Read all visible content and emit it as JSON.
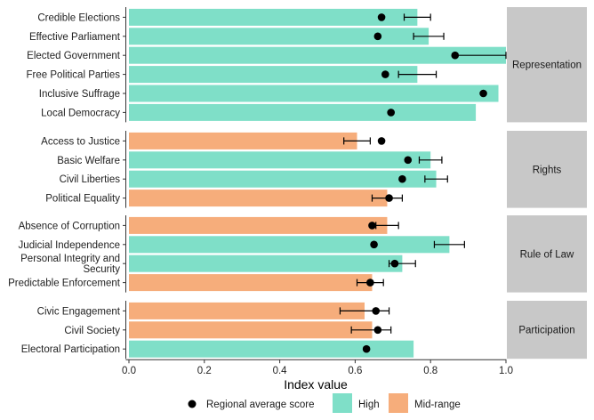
{
  "chart_data": {
    "type": "bar",
    "orientation": "horizontal",
    "xlabel": "Index value",
    "xlim": [
      0,
      1.0
    ],
    "xticks": [
      "0.0",
      "0.2",
      "0.4",
      "0.6",
      "0.8",
      "1.0"
    ],
    "grid": false,
    "legend_position": "bottom",
    "colors": {
      "High": "#7fdfc8",
      "Mid-range": "#f6ad7b",
      "point": "#000000",
      "strip": "#c8c8c8"
    },
    "legend": {
      "point_label": "Regional average score",
      "fill_labels": [
        "High",
        "Mid-range"
      ]
    },
    "facets": [
      {
        "name": "Representation",
        "rows": [
          {
            "label": "Credible Elections",
            "value": 0.765,
            "level": "High",
            "avg": 0.67,
            "err_low": 0.73,
            "err_high": 0.8
          },
          {
            "label": "Effective Parliament",
            "value": 0.795,
            "level": "High",
            "avg": 0.66,
            "err_low": 0.755,
            "err_high": 0.835
          },
          {
            "label": "Elected Government",
            "value": 1.0,
            "level": "High",
            "avg": 0.865,
            "err_low": 0.865,
            "err_high": 1.0
          },
          {
            "label": "Free Political Parties",
            "value": 0.765,
            "level": "High",
            "avg": 0.68,
            "err_low": 0.715,
            "err_high": 0.815
          },
          {
            "label": "Inclusive Suffrage",
            "value": 0.98,
            "level": "High",
            "avg": 0.94,
            "err_low": null,
            "err_high": null
          },
          {
            "label": "Local Democracy",
            "value": 0.92,
            "level": "High",
            "avg": 0.695,
            "err_low": null,
            "err_high": null
          }
        ]
      },
      {
        "name": "Rights",
        "rows": [
          {
            "label": "Access to Justice",
            "value": 0.605,
            "level": "Mid-range",
            "avg": 0.67,
            "err_low": 0.57,
            "err_high": 0.64
          },
          {
            "label": "Basic Welfare",
            "value": 0.8,
            "level": "High",
            "avg": 0.74,
            "err_low": 0.77,
            "err_high": 0.83
          },
          {
            "label": "Civil Liberties",
            "value": 0.815,
            "level": "High",
            "avg": 0.725,
            "err_low": 0.785,
            "err_high": 0.845
          },
          {
            "label": "Political Equality",
            "value": 0.685,
            "level": "Mid-range",
            "avg": 0.69,
            "err_low": 0.645,
            "err_high": 0.725
          }
        ]
      },
      {
        "name": "Rule of Law",
        "rows": [
          {
            "label": "Absence of Corruption",
            "value": 0.685,
            "level": "Mid-range",
            "avg": 0.645,
            "err_low": 0.655,
            "err_high": 0.715
          },
          {
            "label": "Judicial Independence",
            "value": 0.85,
            "level": "High",
            "avg": 0.65,
            "err_low": 0.81,
            "err_high": 0.89
          },
          {
            "label": "Personal Integrity and\nSecurity",
            "value": 0.725,
            "level": "High",
            "avg": 0.705,
            "err_low": 0.69,
            "err_high": 0.76
          },
          {
            "label": "Predictable Enforcement",
            "value": 0.645,
            "level": "Mid-range",
            "avg": 0.64,
            "err_low": 0.605,
            "err_high": 0.675
          }
        ]
      },
      {
        "name": "Participation",
        "rows": [
          {
            "label": "Civic Engagement",
            "value": 0.625,
            "level": "Mid-range",
            "avg": 0.655,
            "err_low": 0.56,
            "err_high": 0.69
          },
          {
            "label": "Civil Society",
            "value": 0.645,
            "level": "Mid-range",
            "avg": 0.66,
            "err_low": 0.59,
            "err_high": 0.695
          },
          {
            "label": "Electoral Participation",
            "value": 0.755,
            "level": "High",
            "avg": 0.63,
            "err_low": null,
            "err_high": null
          }
        ]
      }
    ]
  }
}
